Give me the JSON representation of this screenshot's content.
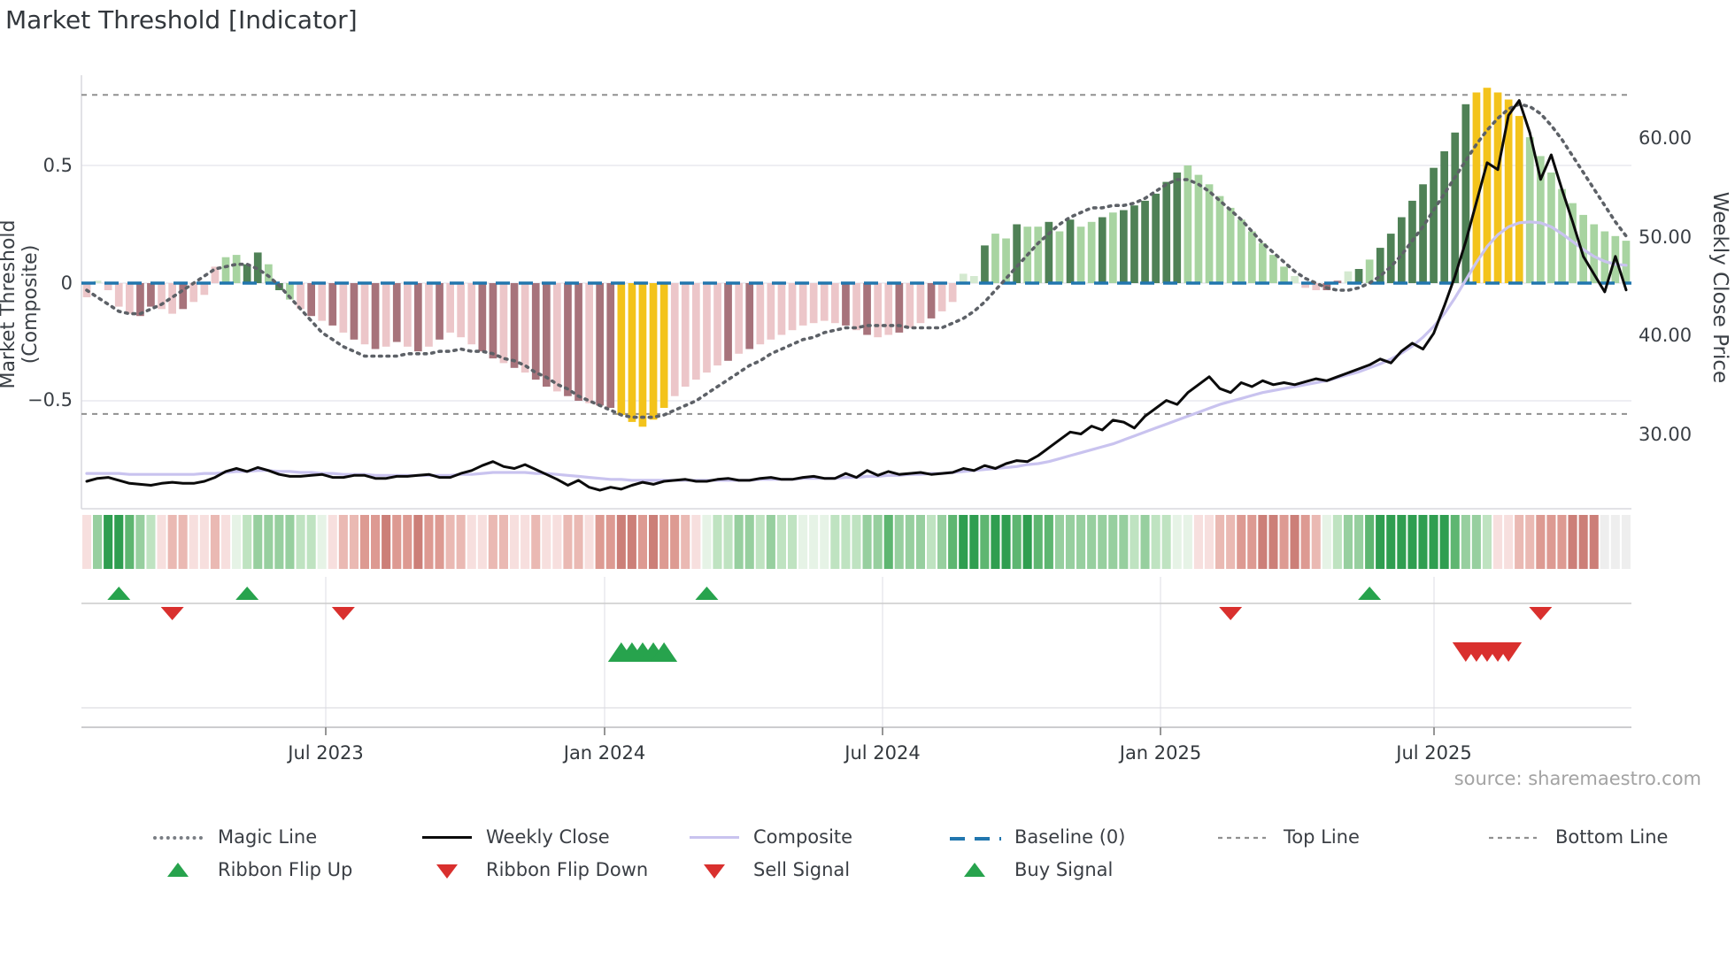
{
  "title": "Market Threshold [Indicator]",
  "source_note": "source: sharemaestro.com",
  "axes": {
    "left_title": "Market Threshold (Composite)",
    "right_title": "Weekly Close Price",
    "left_ticks": [
      {
        "label": "0.5",
        "value": 0.5
      },
      {
        "label": "0",
        "value": 0
      },
      {
        "label": "−0.5",
        "value": -0.5
      }
    ],
    "right_ticks": [
      {
        "label": "60.00",
        "value": 60
      },
      {
        "label": "50.00",
        "value": 50
      },
      {
        "label": "40.00",
        "value": 40
      },
      {
        "label": "30.00",
        "value": 30
      }
    ],
    "x_ticks": [
      "Jul 2023",
      "Jan 2024",
      "Jul 2024",
      "Jan 2025",
      "Jul 2025"
    ]
  },
  "legend": {
    "row1": [
      "Magic Line",
      "Weekly Close",
      "Composite",
      "Baseline (0)",
      "Top Line",
      "Bottom Line"
    ],
    "row2": [
      "Ribbon Flip Up",
      "Ribbon Flip Down",
      "Sell Signal",
      "Buy Signal"
    ]
  },
  "colors": {
    "bar_palette": {
      "p": "#ecc6c9",
      "m": "#a7737b",
      "e": "#d4e9d0",
      "l": "#a8d4a1",
      "g": "#4f8156",
      "y": "#f3c31b"
    },
    "ribbon_palette": {
      "a": "#f7dfde",
      "b": "#eab9b3",
      "c": "#dd9a92",
      "d": "#cc7f78",
      "w": "#e6f3e6",
      "e": "#bfe3c1",
      "f": "#97cf9f",
      "g": "#5eb671",
      "G": "#2f9e50"
    },
    "magic_line": "#5d6167",
    "weekly_close": "#0b0b0b",
    "composite_line": "#c9c3ef",
    "baseline": "#2176ae",
    "top_bottom_line": "#909090",
    "signal_up": "#27a34d",
    "signal_down": "#d9302e",
    "grid": "#e9e9ef"
  },
  "chart_data": {
    "type": "bar",
    "description": "Weekly market-threshold composite histogram with overlay lines; left axis = composite (-0.61..0.83), right axis = weekly close price (24.3..63.8). 145 weekly points, Feb 2023 - Nov 2025.",
    "title": "Market Threshold [Indicator]",
    "xlabel_ticks": [
      "Jul 2023",
      "Jan 2024",
      "Jul 2024",
      "Jan 2025",
      "Jul 2025"
    ],
    "ylabel_left": "Market Threshold (Composite)",
    "ylabel_right": "Weekly Close Price",
    "left_axis_ticks": [
      0.5,
      0,
      -0.5
    ],
    "right_axis_ticks": [
      60,
      50,
      40,
      30
    ],
    "baseline_value": 0,
    "top_line_value": 0.8,
    "bottom_line_value": -0.556,
    "legend_position": "bottom",
    "grid": true,
    "bars": {
      "name": "Composite histogram",
      "values": [
        -0.06,
        0.01,
        -0.03,
        -0.1,
        -0.13,
        -0.14,
        -0.1,
        -0.11,
        -0.13,
        -0.11,
        -0.08,
        -0.05,
        0.07,
        0.11,
        0.12,
        0.08,
        0.13,
        0.08,
        -0.03,
        -0.07,
        -0.11,
        -0.14,
        -0.16,
        -0.18,
        -0.21,
        -0.24,
        -0.26,
        -0.28,
        -0.27,
        -0.25,
        -0.27,
        -0.29,
        -0.27,
        -0.24,
        -0.21,
        -0.23,
        -0.26,
        -0.29,
        -0.32,
        -0.34,
        -0.36,
        -0.38,
        -0.41,
        -0.44,
        -0.46,
        -0.48,
        -0.5,
        -0.51,
        -0.52,
        -0.53,
        -0.56,
        -0.59,
        -0.61,
        -0.58,
        -0.53,
        -0.48,
        -0.44,
        -0.41,
        -0.38,
        -0.35,
        -0.33,
        -0.3,
        -0.28,
        -0.26,
        -0.24,
        -0.22,
        -0.2,
        -0.18,
        -0.17,
        -0.16,
        -0.17,
        -0.18,
        -0.2,
        -0.22,
        -0.23,
        -0.22,
        -0.21,
        -0.19,
        -0.17,
        -0.15,
        -0.12,
        -0.08,
        0.04,
        0.03,
        0.16,
        0.21,
        0.19,
        0.25,
        0.24,
        0.24,
        0.26,
        0.22,
        0.27,
        0.24,
        0.26,
        0.28,
        0.3,
        0.31,
        0.33,
        0.35,
        0.38,
        0.43,
        0.47,
        0.5,
        0.46,
        0.42,
        0.37,
        0.32,
        0.27,
        0.22,
        0.17,
        0.12,
        0.07,
        0.03,
        -0.02,
        -0.03,
        -0.03,
        0.01,
        0.05,
        0.06,
        0.1,
        0.15,
        0.21,
        0.28,
        0.35,
        0.42,
        0.49,
        0.56,
        0.64,
        0.76,
        0.81,
        0.83,
        0.81,
        0.78,
        0.71,
        0.62,
        0.54,
        0.47,
        0.4,
        0.34,
        0.29,
        0.25,
        0.22,
        0.2,
        0.18
      ],
      "color_tokens": "pepppmmppmpppllgglglpmpmpmpmpmpmpmpppmmpmpmmpmmpmmyyyyypppppmpmppppppppmpmppmppmppeegllgllglgllglgggggglllllllllleppmmeglgggggggggyyyyyllllllllll",
      "yellow_extreme_indices": [
        50,
        51,
        52,
        53,
        54,
        129,
        130,
        131,
        132,
        133
      ]
    },
    "series": [
      {
        "name": "Magic Line",
        "axis": "left",
        "style": "dotted gray",
        "values": [
          -0.03,
          -0.06,
          -0.09,
          -0.12,
          -0.13,
          -0.13,
          -0.11,
          -0.09,
          -0.06,
          -0.03,
          0.0,
          0.03,
          0.06,
          0.07,
          0.08,
          0.08,
          0.06,
          0.03,
          -0.01,
          -0.06,
          -0.11,
          -0.16,
          -0.21,
          -0.24,
          -0.27,
          -0.29,
          -0.31,
          -0.31,
          -0.31,
          -0.31,
          -0.3,
          -0.3,
          -0.3,
          -0.29,
          -0.29,
          -0.28,
          -0.29,
          -0.29,
          -0.3,
          -0.32,
          -0.33,
          -0.35,
          -0.38,
          -0.4,
          -0.43,
          -0.45,
          -0.48,
          -0.5,
          -0.52,
          -0.54,
          -0.56,
          -0.57,
          -0.57,
          -0.57,
          -0.56,
          -0.54,
          -0.52,
          -0.5,
          -0.47,
          -0.44,
          -0.41,
          -0.38,
          -0.35,
          -0.33,
          -0.3,
          -0.28,
          -0.26,
          -0.24,
          -0.23,
          -0.21,
          -0.2,
          -0.19,
          -0.19,
          -0.18,
          -0.18,
          -0.18,
          -0.18,
          -0.19,
          -0.19,
          -0.19,
          -0.19,
          -0.17,
          -0.15,
          -0.12,
          -0.08,
          -0.03,
          0.02,
          0.07,
          0.12,
          0.17,
          0.21,
          0.25,
          0.28,
          0.3,
          0.32,
          0.32,
          0.33,
          0.33,
          0.34,
          0.36,
          0.39,
          0.42,
          0.44,
          0.44,
          0.42,
          0.39,
          0.35,
          0.31,
          0.27,
          0.22,
          0.17,
          0.13,
          0.09,
          0.05,
          0.02,
          0.0,
          -0.02,
          -0.03,
          -0.03,
          -0.02,
          0.0,
          0.03,
          0.07,
          0.12,
          0.18,
          0.24,
          0.31,
          0.38,
          0.45,
          0.52,
          0.59,
          0.65,
          0.7,
          0.74,
          0.76,
          0.75,
          0.72,
          0.67,
          0.61,
          0.54,
          0.47,
          0.4,
          0.33,
          0.26,
          0.2
        ]
      },
      {
        "name": "Weekly Close",
        "axis": "right",
        "style": "solid black",
        "values": [
          25.2,
          25.5,
          25.6,
          25.3,
          25.0,
          24.9,
          24.8,
          25.0,
          25.1,
          25.0,
          25.0,
          25.2,
          25.6,
          26.2,
          26.5,
          26.2,
          26.6,
          26.3,
          25.9,
          25.7,
          25.7,
          25.8,
          25.9,
          25.6,
          25.6,
          25.8,
          25.8,
          25.5,
          25.5,
          25.7,
          25.7,
          25.8,
          25.9,
          25.6,
          25.6,
          26.0,
          26.3,
          26.8,
          27.2,
          26.7,
          26.5,
          26.9,
          26.4,
          25.9,
          25.4,
          24.8,
          25.3,
          24.6,
          24.3,
          24.6,
          24.4,
          24.8,
          25.1,
          24.9,
          25.2,
          25.3,
          25.4,
          25.2,
          25.2,
          25.4,
          25.5,
          25.3,
          25.3,
          25.5,
          25.6,
          25.4,
          25.4,
          25.6,
          25.7,
          25.5,
          25.5,
          26.0,
          25.6,
          26.3,
          25.8,
          26.2,
          25.9,
          26.0,
          26.1,
          25.9,
          26.0,
          26.1,
          26.5,
          26.3,
          26.8,
          26.5,
          27.0,
          27.3,
          27.2,
          27.8,
          28.6,
          29.4,
          30.2,
          30.0,
          30.8,
          30.4,
          31.4,
          31.2,
          30.6,
          31.8,
          32.6,
          33.4,
          33.0,
          34.2,
          35.0,
          35.8,
          34.6,
          34.2,
          35.2,
          34.8,
          35.4,
          35.0,
          35.2,
          35.0,
          35.3,
          35.6,
          35.4,
          35.8,
          36.2,
          36.6,
          37.0,
          37.6,
          37.2,
          38.4,
          39.2,
          38.6,
          40.2,
          43.0,
          46.0,
          49.5,
          53.5,
          57.5,
          56.8,
          62.3,
          63.8,
          60.5,
          55.8,
          58.3,
          54.8,
          51.5,
          48.0,
          46.2,
          44.4,
          48.0,
          44.6
        ]
      },
      {
        "name": "Composite",
        "axis": "right",
        "style": "solid lavender",
        "values": [
          26.0,
          26.0,
          26.0,
          26.0,
          25.9,
          25.9,
          25.9,
          25.9,
          25.9,
          25.9,
          25.9,
          26.0,
          26.0,
          26.1,
          26.2,
          26.2,
          26.3,
          26.3,
          26.2,
          26.2,
          26.1,
          26.1,
          26.0,
          26.0,
          25.9,
          25.9,
          25.9,
          25.8,
          25.8,
          25.8,
          25.8,
          25.8,
          25.8,
          25.8,
          25.8,
          25.9,
          25.9,
          26.0,
          26.1,
          26.1,
          26.1,
          26.1,
          26.0,
          26.0,
          25.9,
          25.8,
          25.7,
          25.6,
          25.5,
          25.4,
          25.4,
          25.3,
          25.3,
          25.3,
          25.3,
          25.3,
          25.3,
          25.3,
          25.3,
          25.3,
          25.3,
          25.3,
          25.3,
          25.4,
          25.4,
          25.4,
          25.4,
          25.5,
          25.5,
          25.5,
          25.5,
          25.6,
          25.6,
          25.7,
          25.7,
          25.8,
          25.8,
          25.9,
          25.9,
          26.0,
          26.0,
          26.1,
          26.2,
          26.3,
          26.4,
          26.5,
          26.6,
          26.7,
          26.9,
          27.0,
          27.2,
          27.5,
          27.8,
          28.1,
          28.4,
          28.7,
          29.0,
          29.4,
          29.8,
          30.2,
          30.6,
          31.0,
          31.4,
          31.8,
          32.2,
          32.6,
          33.0,
          33.3,
          33.6,
          33.9,
          34.2,
          34.4,
          34.6,
          34.8,
          35.0,
          35.2,
          35.4,
          35.7,
          36.0,
          36.3,
          36.7,
          37.1,
          37.6,
          38.2,
          38.9,
          39.8,
          40.9,
          42.2,
          43.8,
          45.6,
          47.4,
          49.0,
          50.2,
          51.0,
          51.4,
          51.5,
          51.4,
          51.0,
          50.3,
          49.5,
          48.7,
          48.0,
          47.5,
          47.2,
          47.1
        ]
      }
    ],
    "ribbon_tokens": "afGGgfeabbaabaweffffeewabbccdccdccbbaabbaabaabbaccddcdccbawee ffefee feew wweee ffgfffefgGGgGGgGgg ffffff fefeewwaabbccddcdcbwe ffgGGGGGGGg ffeaabbcccddd",
    "ribbon_tokens_clean": "afGGgfeabbaabaweffffeewabbccdccdccbbaabbaabaabbaccddcdccbaweeffefeewwweeeffgfffefgGGgGGgGggfffffffefeewwaabbccddcdcbweffgGGGGGGGgffeaabbcccddd",
    "signals": {
      "ribbon_flip_up_indices": [
        3,
        15,
        58,
        120
      ],
      "ribbon_flip_down_indices": [
        8,
        24,
        107,
        136
      ],
      "buy_signal_indices": [
        50,
        51,
        52,
        53,
        54
      ],
      "sell_signal_indices": [
        129,
        130,
        131,
        132,
        133
      ]
    }
  }
}
